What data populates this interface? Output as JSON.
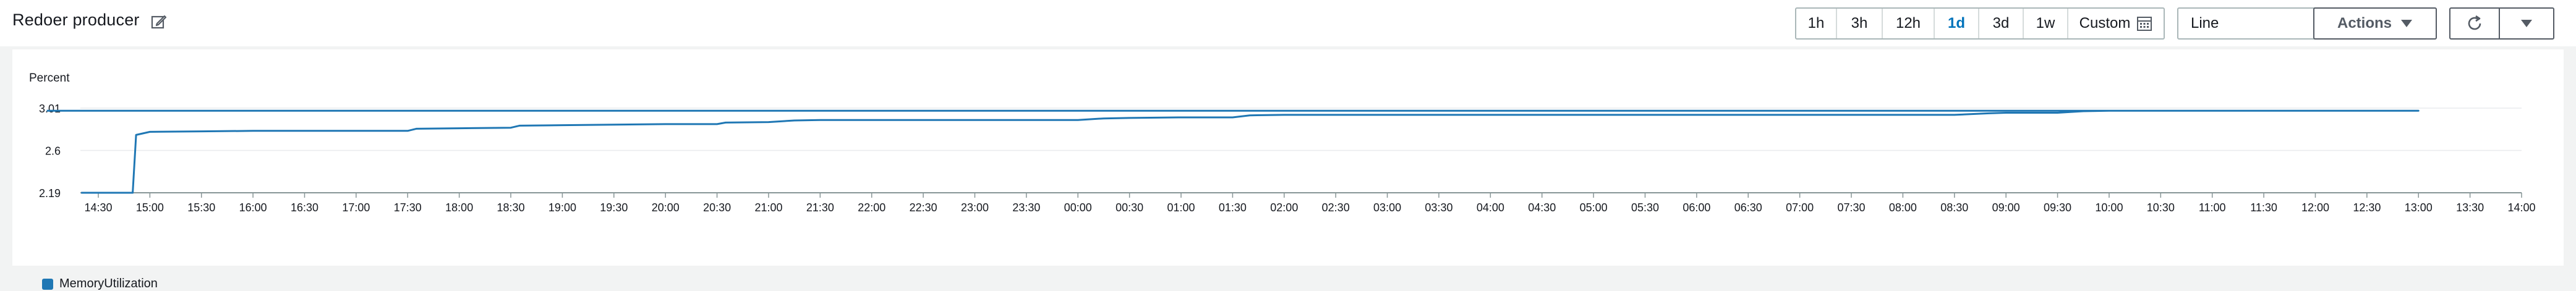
{
  "widget": {
    "title": "Redoer producer",
    "edit_icon": "edit-icon"
  },
  "time_range": {
    "options": [
      "1h",
      "3h",
      "12h",
      "1d",
      "3d",
      "1w",
      "Custom"
    ],
    "selected": "1d",
    "custom_icon": "calendar-icon"
  },
  "view_select": {
    "value": "Line",
    "icon": "caret-down-icon"
  },
  "buttons": {
    "actions_label": "Actions",
    "refresh_icon": "refresh-icon",
    "more_icon": "caret-down-icon"
  },
  "colors": {
    "series": "#1f77b4",
    "accent": "#0073bb"
  },
  "chart_data": {
    "type": "line",
    "ylabel": "Percent",
    "y_ticks": [
      "3.01",
      "2.6",
      "2.19"
    ],
    "ylim": [
      2.19,
      3.01
    ],
    "x_ticks": [
      "14:30",
      "15:00",
      "15:30",
      "16:00",
      "16:30",
      "17:00",
      "17:30",
      "18:00",
      "18:30",
      "19:00",
      "19:30",
      "20:00",
      "20:30",
      "21:00",
      "21:30",
      "22:00",
      "22:30",
      "23:00",
      "23:30",
      "00:00",
      "00:30",
      "01:00",
      "01:30",
      "02:00",
      "02:30",
      "03:00",
      "03:30",
      "04:00",
      "04:30",
      "05:00",
      "05:30",
      "06:00",
      "06:30",
      "07:00",
      "07:30",
      "08:00",
      "08:30",
      "09:00",
      "09:30",
      "10:00",
      "10:30",
      "11:00",
      "11:30",
      "12:00",
      "12:30",
      "13:00",
      "13:30",
      "14:00"
    ],
    "grid": true,
    "legend": "bottom-left",
    "series": [
      {
        "name": "MemoryUtilization",
        "x": [
          "14:20",
          "14:30",
          "14:40",
          "14:50",
          "14:52",
          "15:00",
          "15:30",
          "16:00",
          "16:30",
          "17:00",
          "17:30",
          "17:35",
          "18:00",
          "18:30",
          "18:35",
          "19:00",
          "19:30",
          "20:00",
          "20:30",
          "20:35",
          "21:00",
          "21:15",
          "21:30",
          "22:00",
          "22:30",
          "23:00",
          "23:30",
          "00:00",
          "00:15",
          "00:30",
          "01:00",
          "01:30",
          "01:40",
          "02:00",
          "02:30",
          "03:00",
          "04:00",
          "05:00",
          "06:00",
          "07:00",
          "08:00",
          "08:30",
          "08:50",
          "09:00",
          "09:30",
          "09:45",
          "10:00",
          "11:00",
          "12:00",
          "13:00",
          "14:00"
        ],
        "y": [
          2.19,
          2.19,
          2.19,
          2.19,
          2.75,
          2.78,
          2.785,
          2.79,
          2.79,
          2.79,
          2.79,
          2.81,
          2.815,
          2.82,
          2.84,
          2.845,
          2.85,
          2.855,
          2.855,
          2.87,
          2.875,
          2.89,
          2.895,
          2.895,
          2.895,
          2.895,
          2.895,
          2.895,
          2.91,
          2.915,
          2.92,
          2.92,
          2.94,
          2.945,
          2.945,
          2.945,
          2.945,
          2.945,
          2.945,
          2.945,
          2.945,
          2.945,
          2.96,
          2.965,
          2.965,
          2.98,
          2.985,
          2.985,
          2.985,
          2.985,
          2.985
        ]
      }
    ]
  }
}
